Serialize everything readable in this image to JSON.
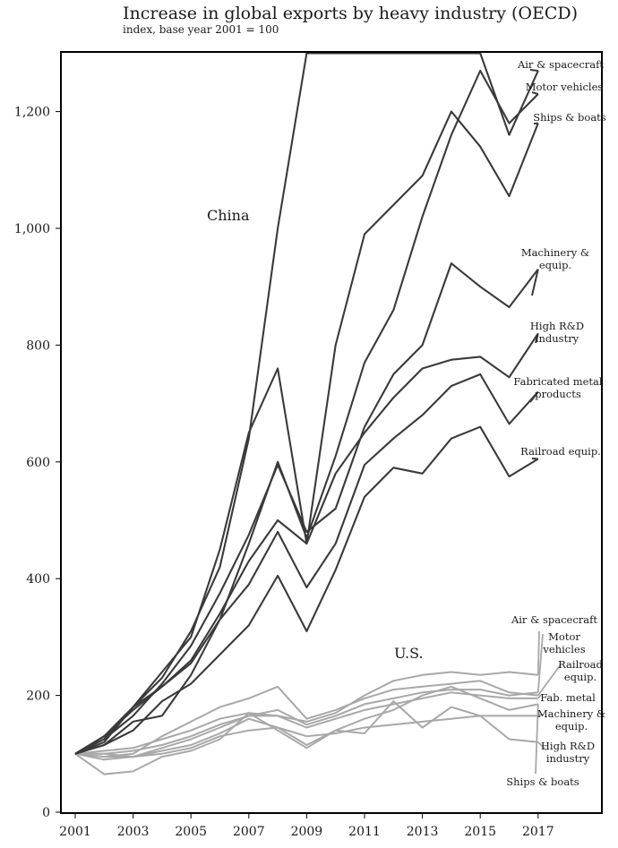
{
  "chart_data": {
    "type": "line",
    "title": "Increase in global exports by heavy industry (OECD)",
    "subtitle": "index, base year 2001 = 100",
    "xlabel": "",
    "ylabel": "",
    "ylim": [
      0,
      1300
    ],
    "xlim": [
      2001,
      2019
    ],
    "x": [
      2001,
      2002,
      2003,
      2004,
      2005,
      2006,
      2007,
      2008,
      2009,
      2010,
      2011,
      2012,
      2013,
      2014,
      2015,
      2016,
      2017
    ],
    "x_ticks": [
      2001,
      2003,
      2005,
      2007,
      2009,
      2011,
      2013,
      2015,
      2017
    ],
    "x_tick_labels": [
      "2001",
      "2003",
      "2005",
      "2007",
      "2009",
      "2011",
      "2013",
      "2015",
      "2017"
    ],
    "y_ticks": [
      0,
      200,
      400,
      600,
      800,
      1000,
      1200
    ],
    "y_tick_labels": [
      "0",
      "200",
      "400",
      "600",
      "800",
      "1,000",
      "1,200"
    ],
    "group_labels": {
      "china": "China",
      "us": "U.S."
    },
    "colors": {
      "china": "#3a3a3a",
      "us": "#a8a8a8",
      "axis": "#000000"
    },
    "series": [
      {
        "group": "china",
        "name": "Air & spacecraft",
        "label": [
          "Air & spacecraft"
        ],
        "values": [
          100,
          125,
          180,
          230,
          310,
          420,
          640,
          1000,
          1300,
          1300,
          1300,
          1300,
          1300,
          1300,
          1300,
          1160,
          1270
        ]
      },
      {
        "group": "china",
        "name": "Motor vehicles",
        "label": [
          "Motor vehicles"
        ],
        "values": [
          100,
          130,
          175,
          215,
          255,
          330,
          460,
          600,
          470,
          610,
          770,
          860,
          1020,
          1160,
          1270,
          1180,
          1230
        ]
      },
      {
        "group": "china",
        "name": "Ships & boats",
        "label": [
          "Ships & boats"
        ],
        "values": [
          100,
          120,
          180,
          240,
          300,
          450,
          650,
          760,
          460,
          800,
          990,
          1040,
          1090,
          1200,
          1140,
          1055,
          1180
        ]
      },
      {
        "group": "china",
        "name": "Machinery & equip.",
        "label": [
          "Machinery &",
          "equip."
        ],
        "values": [
          100,
          125,
          165,
          220,
          285,
          375,
          475,
          595,
          480,
          520,
          660,
          750,
          800,
          940,
          900,
          865,
          930
        ]
      },
      {
        "group": "china",
        "name": "High R&D industry",
        "label": [
          "High R&D",
          "industry"
        ],
        "values": [
          100,
          130,
          180,
          215,
          260,
          340,
          430,
          500,
          460,
          580,
          650,
          710,
          760,
          775,
          780,
          745,
          820
        ]
      },
      {
        "group": "china",
        "name": "Fabricated metal products",
        "label": [
          "Fabricated metal",
          "products"
        ],
        "values": [
          100,
          115,
          155,
          165,
          235,
          330,
          390,
          480,
          385,
          460,
          595,
          640,
          680,
          730,
          750,
          665,
          720
        ]
      },
      {
        "group": "china",
        "name": "Railroad equip.",
        "label": [
          "Railroad equip."
        ],
        "values": [
          100,
          115,
          140,
          190,
          220,
          270,
          320,
          405,
          310,
          415,
          540,
          590,
          580,
          640,
          660,
          575,
          605
        ]
      },
      {
        "group": "us",
        "name": "Air & spacecraft",
        "label": [
          "Air & spacecraft"
        ],
        "values": [
          100,
          105,
          110,
          125,
          140,
          160,
          170,
          165,
          155,
          170,
          200,
          225,
          235,
          240,
          235,
          240,
          235
        ]
      },
      {
        "group": "us",
        "name": "Motor vehicles",
        "label": [
          "Motor",
          "vehicles"
        ],
        "values": [
          100,
          100,
          105,
          115,
          130,
          150,
          165,
          175,
          150,
          165,
          185,
          195,
          205,
          210,
          210,
          200,
          205
        ]
      },
      {
        "group": "us",
        "name": "Railroad equip.",
        "label": [
          "Railroad",
          "equip."
        ],
        "values": [
          100,
          95,
          100,
          130,
          155,
          180,
          195,
          215,
          160,
          175,
          195,
          210,
          215,
          220,
          225,
          205,
          200
        ]
      },
      {
        "group": "us",
        "name": "Fab. metal",
        "label": [
          "Fab. metal"
        ],
        "values": [
          100,
          95,
          95,
          110,
          125,
          145,
          165,
          165,
          145,
          160,
          175,
          185,
          195,
          205,
          200,
          195,
          195
        ]
      },
      {
        "group": "us",
        "name": "Machinery & equip.",
        "label": [
          "Machinery &",
          "equip."
        ],
        "values": [
          100,
          100,
          95,
          100,
          110,
          130,
          140,
          145,
          130,
          135,
          145,
          150,
          155,
          160,
          165,
          165,
          165
        ]
      },
      {
        "group": "us",
        "name": "High R&D industry",
        "label": [
          "High R&D",
          "industry"
        ],
        "values": [
          100,
          90,
          95,
          105,
          115,
          135,
          160,
          145,
          115,
          140,
          135,
          190,
          145,
          180,
          165,
          125,
          120
        ]
      },
      {
        "group": "us",
        "name": "Ships & boats",
        "label": [
          "Ships & boats"
        ],
        "values": [
          100,
          65,
          70,
          95,
          105,
          125,
          170,
          140,
          110,
          140,
          160,
          175,
          200,
          215,
          195,
          175,
          185
        ]
      }
    ]
  }
}
